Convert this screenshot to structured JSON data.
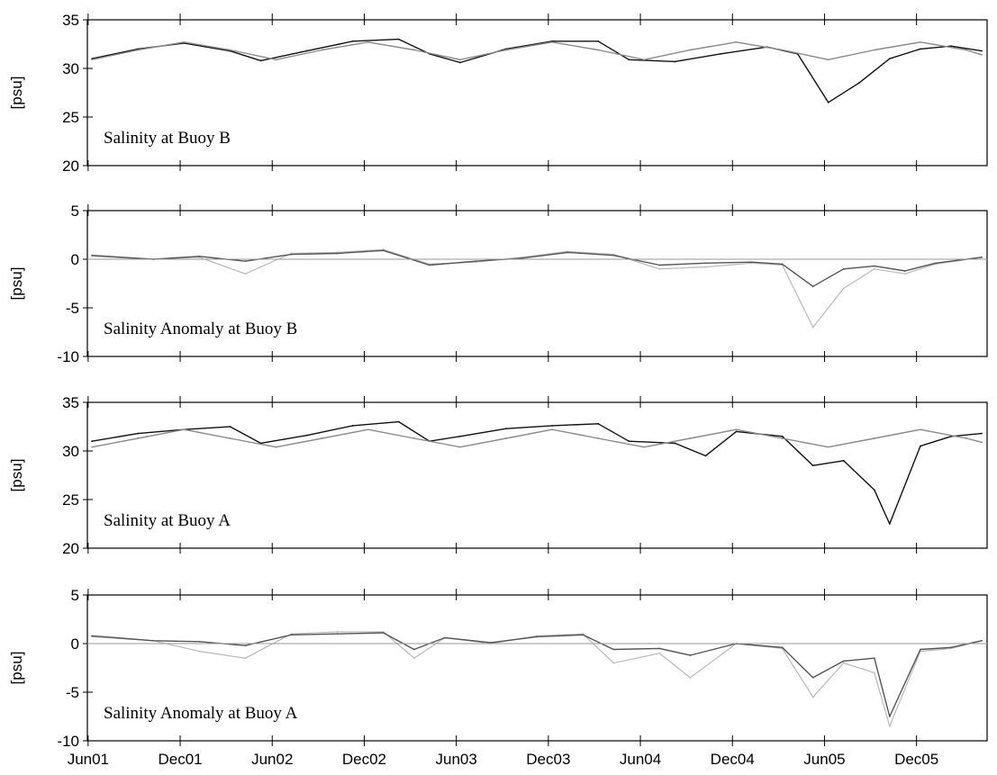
{
  "chart_data": [
    {
      "type": "line",
      "title": "Salinity at Buoy B",
      "ylabel": "[psu]",
      "ylim": [
        20,
        35
      ],
      "yticks": [
        "20",
        "25",
        "30",
        "35"
      ],
      "x_range": [
        "2001-06",
        "2006-04"
      ],
      "series": [
        {
          "role": "observed",
          "color": "#111111",
          "x": [
            "2001-06",
            "2001-09",
            "2001-12",
            "2002-03",
            "2002-05",
            "2002-08",
            "2002-11",
            "2003-02",
            "2003-04",
            "2003-06",
            "2003-09",
            "2003-12",
            "2004-03",
            "2004-05",
            "2004-08",
            "2004-11",
            "2005-02",
            "2005-04",
            "2005-06",
            "2005-08",
            "2005-10",
            "2005-12",
            "2006-02",
            "2006-04"
          ],
          "values": [
            31.0,
            32.0,
            32.6,
            31.8,
            30.8,
            31.8,
            32.8,
            33.0,
            31.5,
            30.6,
            32.0,
            32.8,
            32.8,
            30.9,
            30.7,
            31.5,
            32.2,
            31.5,
            26.5,
            28.5,
            31.0,
            32.0,
            32.3,
            31.8
          ]
        },
        {
          "role": "seasonal-fit",
          "color": "#8a8a8a",
          "x": [
            "2001-06",
            "2001-09",
            "2001-12",
            "2002-03",
            "2002-06",
            "2002-09",
            "2002-12",
            "2003-03",
            "2003-06",
            "2003-09",
            "2003-12",
            "2004-03",
            "2004-06",
            "2004-09",
            "2004-12",
            "2005-03",
            "2005-06",
            "2005-09",
            "2005-12",
            "2006-03",
            "2006-04"
          ],
          "values": [
            30.9,
            31.9,
            32.7,
            31.9,
            30.9,
            31.9,
            32.7,
            31.9,
            30.9,
            31.9,
            32.7,
            31.9,
            30.9,
            31.9,
            32.7,
            31.9,
            30.9,
            31.9,
            32.7,
            31.9,
            31.4
          ]
        }
      ]
    },
    {
      "type": "line",
      "title": "Salinity Anomaly at Buoy B",
      "ylabel": "[psu]",
      "ylim": [
        -10,
        5
      ],
      "yticks": [
        "-10",
        "-5",
        "0",
        "5"
      ],
      "x_range": [
        "2001-06",
        "2006-04"
      ],
      "series": [
        {
          "role": "raw-anomaly",
          "color": "#b9b9b9",
          "x": [
            "2001-06",
            "2001-10",
            "2002-01",
            "2002-04",
            "2002-07",
            "2002-10",
            "2003-01",
            "2003-04",
            "2003-07",
            "2003-10",
            "2004-01",
            "2004-04",
            "2004-07",
            "2004-10",
            "2005-01",
            "2005-03",
            "2005-05",
            "2005-07",
            "2005-09",
            "2005-11",
            "2006-01",
            "2006-04"
          ],
          "values": [
            0.3,
            0.0,
            0.2,
            -1.5,
            0.6,
            0.7,
            1.0,
            -0.5,
            -0.3,
            0.2,
            0.8,
            0.5,
            -1.0,
            -0.8,
            -0.4,
            -0.6,
            -7.0,
            -3.0,
            -1.0,
            -1.5,
            -0.5,
            0.2
          ]
        },
        {
          "role": "smoothed-anomaly",
          "color": "#555555",
          "x": [
            "2001-06",
            "2001-10",
            "2002-01",
            "2002-04",
            "2002-07",
            "2002-10",
            "2003-01",
            "2003-04",
            "2003-07",
            "2003-10",
            "2004-01",
            "2004-04",
            "2004-07",
            "2004-10",
            "2005-01",
            "2005-03",
            "2005-05",
            "2005-07",
            "2005-09",
            "2005-11",
            "2006-01",
            "2006-04"
          ],
          "values": [
            0.4,
            0.0,
            0.3,
            -0.2,
            0.5,
            0.6,
            0.9,
            -0.6,
            -0.2,
            0.1,
            0.7,
            0.4,
            -0.6,
            -0.4,
            -0.3,
            -0.5,
            -2.8,
            -1.0,
            -0.7,
            -1.2,
            -0.4,
            0.2
          ]
        },
        {
          "role": "zero-line",
          "color": "#9a9a9a",
          "value": 0
        }
      ]
    },
    {
      "type": "line",
      "title": "Salinity at Buoy A",
      "ylabel": "[psu]",
      "ylim": [
        20,
        35
      ],
      "yticks": [
        "20",
        "25",
        "30",
        "35"
      ],
      "x_range": [
        "2001-06",
        "2006-04"
      ],
      "series": [
        {
          "role": "observed",
          "color": "#111111",
          "x": [
            "2001-06",
            "2001-09",
            "2001-12",
            "2002-03",
            "2002-05",
            "2002-08",
            "2002-11",
            "2003-02",
            "2003-04",
            "2003-06",
            "2003-09",
            "2003-12",
            "2004-03",
            "2004-05",
            "2004-08",
            "2004-10",
            "2004-12",
            "2005-03",
            "2005-05",
            "2005-07",
            "2005-09",
            "2005-10",
            "2005-12",
            "2006-02",
            "2006-04"
          ],
          "values": [
            31.0,
            31.8,
            32.2,
            32.5,
            30.8,
            31.6,
            32.6,
            33.0,
            31.0,
            31.5,
            32.3,
            32.6,
            32.8,
            31.0,
            30.8,
            29.5,
            32.0,
            31.5,
            28.5,
            29.0,
            26.0,
            22.5,
            30.5,
            31.5,
            31.8
          ]
        },
        {
          "role": "seasonal-fit",
          "color": "#8a8a8a",
          "x": [
            "2001-06",
            "2001-09",
            "2001-12",
            "2002-03",
            "2002-06",
            "2002-09",
            "2002-12",
            "2003-03",
            "2003-06",
            "2003-09",
            "2003-12",
            "2004-03",
            "2004-06",
            "2004-09",
            "2004-12",
            "2005-03",
            "2005-06",
            "2005-09",
            "2005-12",
            "2006-03",
            "2006-04"
          ],
          "values": [
            30.4,
            31.3,
            32.2,
            31.3,
            30.4,
            31.3,
            32.2,
            31.3,
            30.4,
            31.3,
            32.2,
            31.3,
            30.4,
            31.3,
            32.2,
            31.3,
            30.4,
            31.3,
            32.2,
            31.3,
            30.9
          ]
        }
      ]
    },
    {
      "type": "line",
      "title": "Salinity Anomaly at Buoy A",
      "ylabel": "[psu]",
      "ylim": [
        -10,
        5
      ],
      "yticks": [
        "-10",
        "-5",
        "0",
        "5"
      ],
      "xticks": [
        "Jun01",
        "Dec01",
        "Jun02",
        "Dec02",
        "Jun03",
        "Dec03",
        "Jun04",
        "Dec04",
        "Jun05",
        "Dec05"
      ],
      "x_range": [
        "2001-06",
        "2006-04"
      ],
      "series": [
        {
          "role": "raw-anomaly",
          "color": "#b9b9b9",
          "x": [
            "2001-06",
            "2001-10",
            "2002-01",
            "2002-04",
            "2002-07",
            "2002-10",
            "2003-01",
            "2003-03",
            "2003-05",
            "2003-08",
            "2003-11",
            "2004-02",
            "2004-04",
            "2004-07",
            "2004-09",
            "2004-12",
            "2005-03",
            "2005-05",
            "2005-07",
            "2005-09",
            "2005-10",
            "2005-12",
            "2006-02",
            "2006-04"
          ],
          "values": [
            0.7,
            0.3,
            -0.8,
            -1.5,
            1.0,
            1.2,
            1.2,
            -1.5,
            0.6,
            0.0,
            0.8,
            1.0,
            -2.0,
            -1.0,
            -3.5,
            0.0,
            -0.5,
            -5.5,
            -2.0,
            -3.0,
            -8.5,
            -0.8,
            -0.5,
            0.3
          ]
        },
        {
          "role": "smoothed-anomaly",
          "color": "#555555",
          "x": [
            "2001-06",
            "2001-10",
            "2002-01",
            "2002-04",
            "2002-07",
            "2002-10",
            "2003-01",
            "2003-03",
            "2003-05",
            "2003-08",
            "2003-11",
            "2004-02",
            "2004-04",
            "2004-07",
            "2004-09",
            "2004-12",
            "2005-03",
            "2005-05",
            "2005-07",
            "2005-09",
            "2005-10",
            "2005-12",
            "2006-02",
            "2006-04"
          ],
          "values": [
            0.8,
            0.3,
            0.2,
            -0.2,
            0.9,
            1.0,
            1.1,
            -0.6,
            0.6,
            0.1,
            0.7,
            0.9,
            -0.6,
            -0.5,
            -1.2,
            0.0,
            -0.4,
            -3.5,
            -1.8,
            -1.5,
            -7.5,
            -0.6,
            -0.4,
            0.3
          ]
        },
        {
          "role": "zero-line",
          "color": "#9a9a9a",
          "value": 0
        }
      ]
    }
  ]
}
